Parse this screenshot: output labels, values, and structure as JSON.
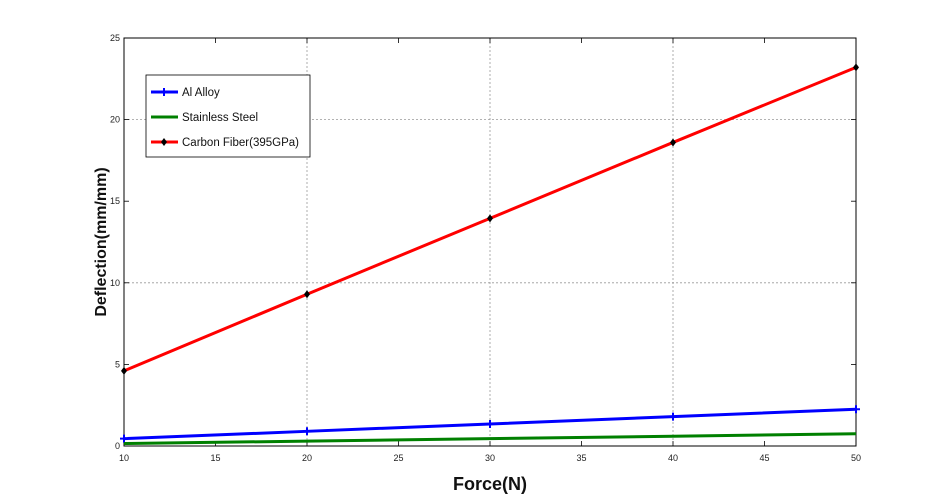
{
  "chart_data": {
    "type": "line",
    "title": "",
    "xlabel": "Force(N)",
    "ylabel": "Deflection(mm/mm)",
    "xlim": [
      10,
      50
    ],
    "ylim": [
      0,
      25
    ],
    "xticks": [
      "10",
      "15",
      "20",
      "25",
      "30",
      "35",
      "40",
      "45",
      "50"
    ],
    "yticks": [
      "0",
      "5",
      "10",
      "15",
      "20",
      "25"
    ],
    "grid": true,
    "legend_position": "top-left",
    "x": [
      10,
      20,
      30,
      40,
      50
    ],
    "series": [
      {
        "name": "Al Alloy",
        "color": "#0000ff",
        "values": [
          0.45,
          0.9,
          1.35,
          1.8,
          2.25
        ]
      },
      {
        "name": "Stainless Steel",
        "color": "#008000",
        "values": [
          0.15,
          0.3,
          0.45,
          0.6,
          0.75
        ]
      },
      {
        "name": "Carbon Fiber(395GPa)",
        "color": "#ff0000",
        "values": [
          4.6,
          9.3,
          13.95,
          18.6,
          23.2
        ]
      }
    ]
  }
}
